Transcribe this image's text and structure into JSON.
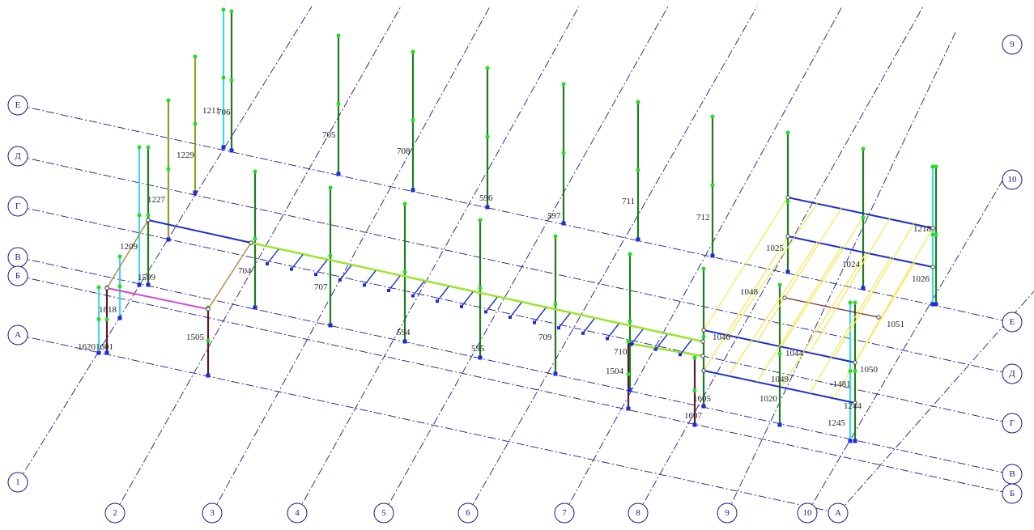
{
  "axes_numbers": [
    "1",
    "2",
    "3",
    "4",
    "5",
    "6",
    "7",
    "8",
    "9",
    "10",
    "9",
    "10"
  ],
  "axes_letters": [
    "Е",
    "Д",
    "Г",
    "В",
    "Б",
    "А",
    "Е",
    "Д",
    "Г",
    "В",
    "Б",
    "А"
  ],
  "element_labels": [
    "1211",
    "706",
    "705",
    "708",
    "596",
    "597",
    "711",
    "712",
    "1229",
    "1227",
    "1209",
    "1599",
    "1618",
    "1620",
    "1601",
    "704",
    "707",
    "1505",
    "594",
    "595",
    "709",
    "710",
    "1504",
    "1605",
    "1607",
    "1025",
    "1024",
    "1218",
    "1026",
    "1048",
    "1046",
    "1044",
    "1049",
    "1020",
    "1051",
    "1050",
    "-1481",
    "1245",
    "1244"
  ],
  "colors": {
    "axis_line": "#1a1a8c",
    "column_green": "#1e7a1e",
    "beam_blue": "#1a2ecf",
    "beam_lime": "#9be62b",
    "beam_yellow": "#f2e84a",
    "beam_magenta": "#d24ad2",
    "column_cyan": "#3fd9e8",
    "column_olive": "#8aa12c",
    "column_maroon": "#5a1a2a",
    "node_green": "#22dd22"
  }
}
